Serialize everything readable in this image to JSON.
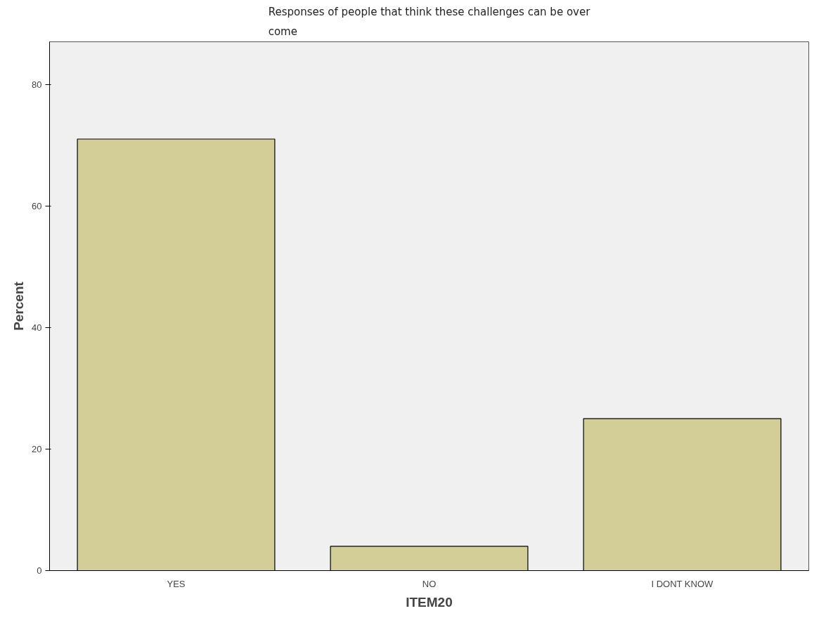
{
  "chart_data": {
    "type": "bar",
    "title": "Responses of people that think these challenges can be over come",
    "xlabel": "ITEM20",
    "ylabel": "Percent",
    "categories": [
      "YES",
      "NO",
      "I DONT KNOW"
    ],
    "values": [
      71,
      4,
      25
    ],
    "color": "#d3cd98",
    "ylim": [
      0,
      87
    ],
    "yticks": [
      0,
      20,
      40,
      60,
      80
    ],
    "grid": false
  }
}
